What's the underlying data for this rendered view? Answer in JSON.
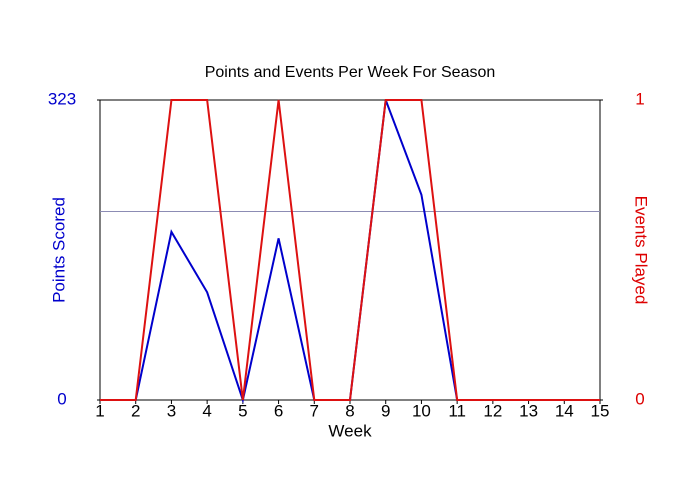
{
  "chart_data": {
    "type": "line",
    "title": "Points and Events Per Week For Season",
    "x_label": "Week",
    "y_label": "Points Scored",
    "y2_label": "Events Played",
    "x": [
      1,
      2,
      3,
      4,
      5,
      6,
      7,
      8,
      9,
      10,
      11,
      12,
      13,
      14,
      15
    ],
    "xlim": [
      1,
      15
    ],
    "xticks": [
      1,
      2,
      3,
      4,
      5,
      6,
      7,
      8,
      9,
      10,
      11,
      12,
      13,
      14,
      15
    ],
    "ylim": [
      0,
      323
    ],
    "yticks": [
      0,
      323
    ],
    "y2lim": [
      0,
      1
    ],
    "y2ticks": [
      0,
      1
    ],
    "y_color": "#0000cc",
    "y2_color": "#dd0000",
    "reference_line": {
      "value": 203,
      "color": "#8c8cb4"
    },
    "series": [
      {
        "name": "Points Scored",
        "color": "#0000cc",
        "values": [
          0,
          0,
          181,
          116,
          0,
          174,
          0,
          0,
          323,
          221,
          0,
          0,
          0,
          0,
          0
        ]
      },
      {
        "name": "Events Played",
        "color": "#dd1111",
        "axis": "y2",
        "values": [
          0,
          0,
          1,
          1,
          0,
          1,
          0,
          0,
          1,
          1,
          0,
          0,
          0,
          0,
          0
        ]
      }
    ]
  }
}
